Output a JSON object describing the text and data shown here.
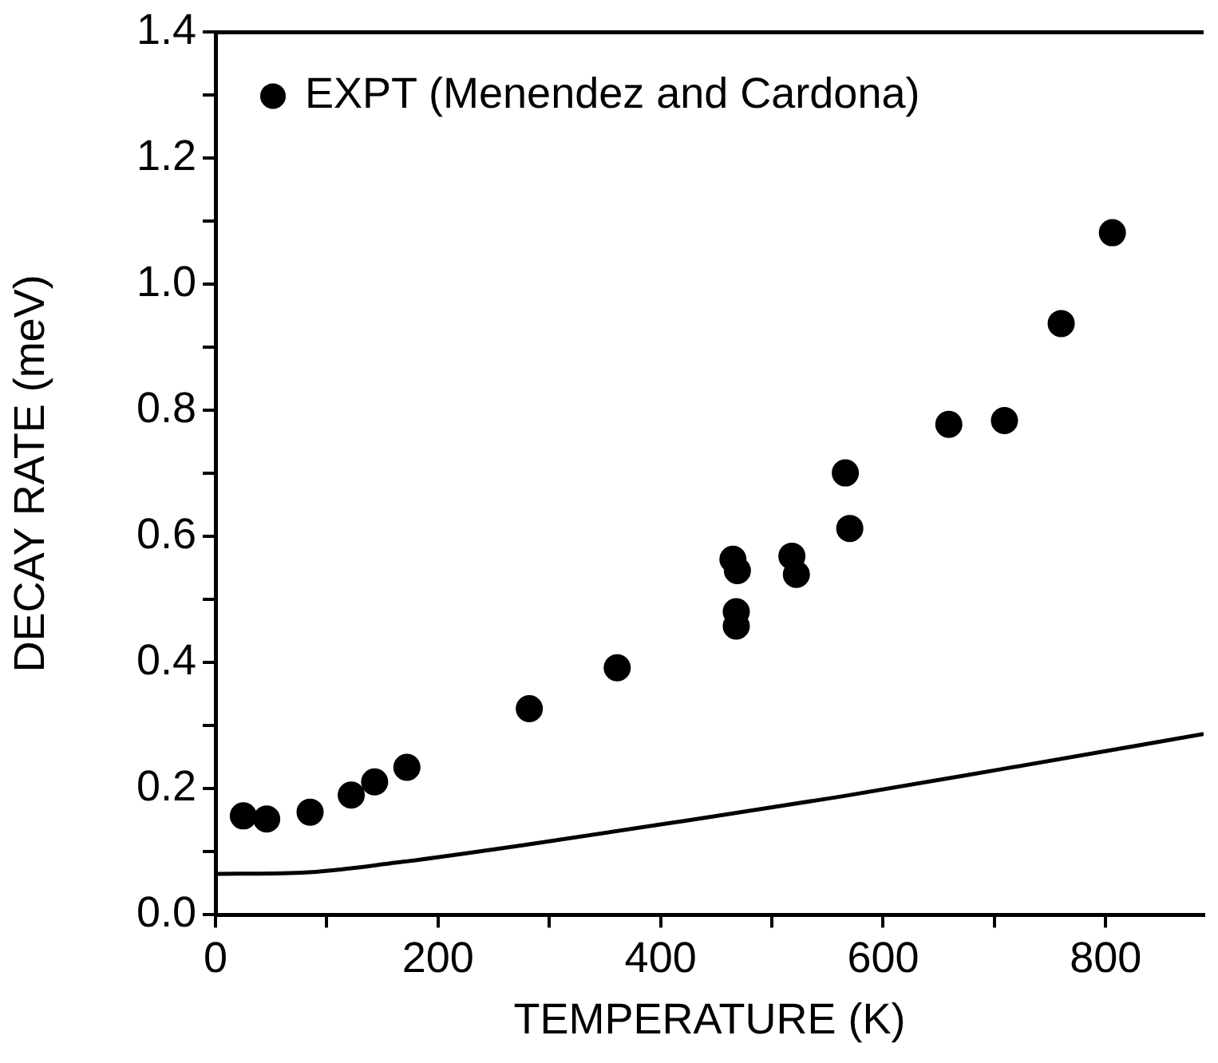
{
  "chart_data": {
    "type": "scatter",
    "xlabel": "TEMPERATURE (K)",
    "ylabel": "DECAY RATE (meV)",
    "xlim": [
      0,
      888
    ],
    "ylim": [
      0,
      1.4
    ],
    "xticks": [
      0,
      {
        "value": 100,
        "label": null
      },
      200,
      {
        "value": 300,
        "label": null
      },
      400,
      {
        "value": 500,
        "label": null
      },
      600,
      {
        "value": 700,
        "label": null
      },
      800
    ],
    "yticks": [
      "0.0",
      {
        "value": 0.1,
        "label": null
      },
      0.2,
      {
        "value": 0.3,
        "label": null
      },
      0.4,
      {
        "value": 0.5,
        "label": null
      },
      0.6,
      {
        "value": 0.7,
        "label": null
      },
      0.8,
      {
        "value": 0.9,
        "label": null
      },
      {
        "value": 1,
        "label": "1.0"
      },
      {
        "value": 1.1,
        "label": null
      },
      1.2,
      {
        "value": 1.3,
        "label": null
      },
      1.4
    ],
    "grid": false,
    "legend": "top left",
    "marker": "circle",
    "series": [
      {
        "name": "EXPT (Menendez and Cardona)",
        "type": "scatter",
        "color": "#000000",
        "x": [
          25,
          46,
          85,
          122,
          143,
          172,
          282,
          361,
          465,
          469,
          468,
          468,
          518,
          522,
          566,
          570,
          659,
          709,
          760,
          806
        ],
        "values": [
          0.157,
          0.152,
          0.163,
          0.19,
          0.211,
          0.234,
          0.327,
          0.392,
          0.564,
          0.546,
          0.481,
          0.458,
          0.569,
          0.54,
          0.701,
          0.613,
          0.778,
          0.784,
          0.938,
          1.082
        ]
      },
      {
        "type": "line",
        "color": "#000000",
        "marker": "none",
        "line_style": "solid",
        "x": [
          0,
          78,
          163,
          278,
          421,
          563,
          706,
          888
        ],
        "values": [
          0.065,
          0.067,
          0.083,
          0.111,
          0.149,
          0.188,
          0.231,
          0.287
        ]
      }
    ]
  }
}
